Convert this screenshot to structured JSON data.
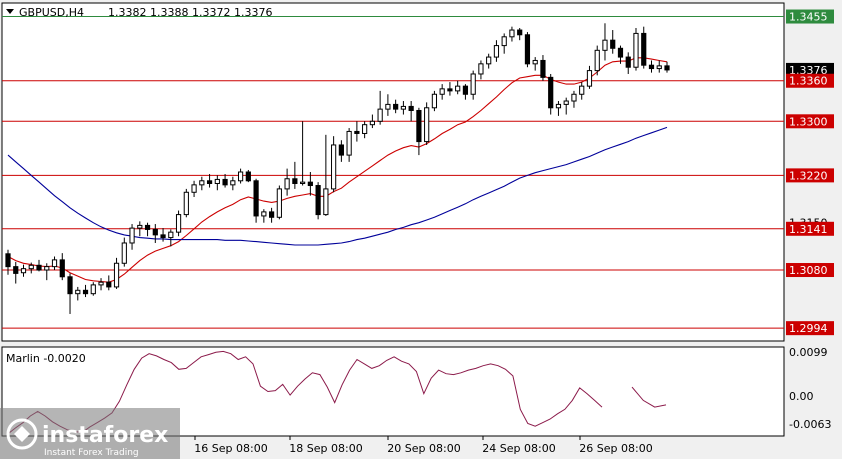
{
  "header": {
    "symbol": "GBPUSD,H4",
    "ohlc": "1.3382 1.3388 1.3372 1.3376"
  },
  "chart_data": [
    {
      "type": "candlestick",
      "symbol": "GBPUSD",
      "timeframe": "H4",
      "x_labels": [
        "16 Sep 08:00",
        "18 Sep 08:00",
        "20 Sep 08:00",
        "24 Sep 08:00",
        "26 Sep 08:00"
      ],
      "ylim": [
        1.2975,
        1.3475
      ],
      "price_labels": [
        "1.3455",
        "1.3376",
        "1.3360",
        "1.3300",
        "1.3220",
        "1.3150",
        "1.3141",
        "1.3080",
        "1.2994"
      ],
      "current_price": 1.3376,
      "horizontal_levels": [
        {
          "value": 1.3455,
          "color": "#2e8b3e"
        },
        {
          "value": 1.336,
          "color": "#cc0000"
        },
        {
          "value": 1.33,
          "color": "#cc0000"
        },
        {
          "value": 1.322,
          "color": "#cc0000"
        },
        {
          "value": 1.3141,
          "color": "#cc0000"
        },
        {
          "value": 1.308,
          "color": "#cc0000"
        },
        {
          "value": 1.2994,
          "color": "#cc0000"
        }
      ],
      "candles": [
        [
          1.3104,
          1.311,
          1.3073,
          1.3085
        ],
        [
          1.3085,
          1.3092,
          1.306,
          1.3075
        ],
        [
          1.3076,
          1.3088,
          1.307,
          1.3082
        ],
        [
          1.3082,
          1.3091,
          1.3075,
          1.3087
        ],
        [
          1.3087,
          1.3095,
          1.3078,
          1.308
        ],
        [
          1.308,
          1.309,
          1.3065,
          1.3085
        ],
        [
          1.3085,
          1.31,
          1.308,
          1.3095
        ],
        [
          1.3095,
          1.3105,
          1.3065,
          1.307
        ],
        [
          1.307,
          1.3075,
          1.3015,
          1.3045
        ],
        [
          1.3045,
          1.3055,
          1.3035,
          1.305
        ],
        [
          1.305,
          1.3058,
          1.304,
          1.3045
        ],
        [
          1.3045,
          1.3062,
          1.3042,
          1.3058
        ],
        [
          1.3058,
          1.3068,
          1.305,
          1.3062
        ],
        [
          1.3062,
          1.3072,
          1.305,
          1.3055
        ],
        [
          1.3055,
          1.3098,
          1.3052,
          1.309
        ],
        [
          1.309,
          1.3128,
          1.3085,
          1.312
        ],
        [
          1.312,
          1.3148,
          1.311,
          1.3142
        ],
        [
          1.3142,
          1.3152,
          1.313,
          1.3146
        ],
        [
          1.3146,
          1.315,
          1.313,
          1.314
        ],
        [
          1.314,
          1.3148,
          1.312,
          1.3132
        ],
        [
          1.3132,
          1.3142,
          1.3122,
          1.3128
        ],
        [
          1.3128,
          1.314,
          1.3115,
          1.3136
        ],
        [
          1.3136,
          1.3168,
          1.313,
          1.3162
        ],
        [
          1.3162,
          1.32,
          1.3158,
          1.3195
        ],
        [
          1.3195,
          1.3212,
          1.3188,
          1.3206
        ],
        [
          1.3206,
          1.3218,
          1.3198,
          1.3212
        ],
        [
          1.3212,
          1.3222,
          1.3202,
          1.3208
        ],
        [
          1.3208,
          1.322,
          1.3198,
          1.3214
        ],
        [
          1.3214,
          1.3222,
          1.3202,
          1.3206
        ],
        [
          1.3206,
          1.3218,
          1.3198,
          1.3212
        ],
        [
          1.3212,
          1.323,
          1.3208,
          1.3225
        ],
        [
          1.3225,
          1.3228,
          1.321,
          1.3212
        ],
        [
          1.3212,
          1.3215,
          1.315,
          1.316
        ],
        [
          1.316,
          1.317,
          1.315,
          1.3166
        ],
        [
          1.3166,
          1.3172,
          1.315,
          1.3158
        ],
        [
          1.3158,
          1.3205,
          1.3155,
          1.32
        ],
        [
          1.32,
          1.323,
          1.319,
          1.3215
        ],
        [
          1.3215,
          1.324,
          1.32,
          1.3208
        ],
        [
          1.3208,
          1.33,
          1.3205,
          1.321
        ],
        [
          1.321,
          1.3225,
          1.319,
          1.3205
        ],
        [
          1.3205,
          1.321,
          1.3155,
          1.3162
        ],
        [
          1.3162,
          1.328,
          1.316,
          1.32
        ],
        [
          1.32,
          1.3278,
          1.3195,
          1.3265
        ],
        [
          1.3265,
          1.3272,
          1.324,
          1.325
        ],
        [
          1.325,
          1.329,
          1.324,
          1.3285
        ],
        [
          1.3285,
          1.33,
          1.327,
          1.3282
        ],
        [
          1.3282,
          1.33,
          1.3275,
          1.3295
        ],
        [
          1.3295,
          1.331,
          1.329,
          1.33
        ],
        [
          1.33,
          1.3345,
          1.3295,
          1.3318
        ],
        [
          1.3318,
          1.334,
          1.3308,
          1.3325
        ],
        [
          1.3325,
          1.3332,
          1.3312,
          1.3318
        ],
        [
          1.3318,
          1.333,
          1.331,
          1.3322
        ],
        [
          1.3322,
          1.333,
          1.33,
          1.3316
        ],
        [
          1.3316,
          1.332,
          1.325,
          1.327
        ],
        [
          1.327,
          1.3328,
          1.3265,
          1.332
        ],
        [
          1.332,
          1.3345,
          1.3315,
          1.334
        ],
        [
          1.334,
          1.3355,
          1.3332,
          1.3348
        ],
        [
          1.3348,
          1.3358,
          1.3338,
          1.3345
        ],
        [
          1.3345,
          1.336,
          1.334,
          1.3352
        ],
        [
          1.3352,
          1.3355,
          1.3332,
          1.334
        ],
        [
          1.334,
          1.3375,
          1.3332,
          1.337
        ],
        [
          1.337,
          1.339,
          1.3362,
          1.3385
        ],
        [
          1.3385,
          1.34,
          1.3378,
          1.3395
        ],
        [
          1.3395,
          1.342,
          1.3388,
          1.3412
        ],
        [
          1.3412,
          1.343,
          1.34,
          1.3425
        ],
        [
          1.3425,
          1.344,
          1.3418,
          1.3435
        ],
        [
          1.3435,
          1.3438,
          1.342,
          1.3428
        ],
        [
          1.3428,
          1.3432,
          1.338,
          1.3385
        ],
        [
          1.3385,
          1.3395,
          1.3375,
          1.339
        ],
        [
          1.339,
          1.3398,
          1.336,
          1.3365
        ],
        [
          1.3365,
          1.337,
          1.331,
          1.332
        ],
        [
          1.332,
          1.333,
          1.3308,
          1.3325
        ],
        [
          1.3325,
          1.3335,
          1.331,
          1.333
        ],
        [
          1.333,
          1.3345,
          1.332,
          1.334
        ],
        [
          1.334,
          1.3358,
          1.3332,
          1.3352
        ],
        [
          1.3352,
          1.3382,
          1.3348,
          1.3375
        ],
        [
          1.3375,
          1.3412,
          1.3368,
          1.3405
        ],
        [
          1.3405,
          1.3445,
          1.339,
          1.342
        ],
        [
          1.342,
          1.3435,
          1.34,
          1.3408
        ],
        [
          1.3408,
          1.3412,
          1.3385,
          1.3395
        ],
        [
          1.3395,
          1.3402,
          1.337,
          1.338
        ],
        [
          1.338,
          1.3438,
          1.3375,
          1.343
        ],
        [
          1.343,
          1.344,
          1.3378,
          1.3383
        ],
        [
          1.3383,
          1.339,
          1.3372,
          1.3378
        ],
        [
          1.3378,
          1.339,
          1.3372,
          1.3382
        ],
        [
          1.3382,
          1.3388,
          1.3372,
          1.3376
        ]
      ],
      "moving_averages": [
        {
          "name": "fast",
          "color": "#cc0000",
          "values": [
            1.31,
            1.3094,
            1.309,
            1.3088,
            1.3086,
            1.3085,
            1.3086,
            1.3083,
            1.3076,
            1.3071,
            1.3066,
            1.3064,
            1.3063,
            1.3062,
            1.3066,
            1.3074,
            1.3084,
            1.3094,
            1.3102,
            1.3108,
            1.3112,
            1.3116,
            1.3122,
            1.3131,
            1.3141,
            1.3151,
            1.3159,
            1.3166,
            1.3172,
            1.3177,
            1.3184,
            1.3188,
            1.3185,
            1.3182,
            1.318,
            1.3182,
            1.3186,
            1.3189,
            1.3191,
            1.3193,
            1.3189,
            1.3189,
            1.3196,
            1.3201,
            1.321,
            1.3218,
            1.3226,
            1.3234,
            1.3242,
            1.325,
            1.3256,
            1.3261,
            1.3264,
            1.3262,
            1.3267,
            1.3274,
            1.3282,
            1.3288,
            1.3295,
            1.3299,
            1.3307,
            1.3316,
            1.3326,
            1.3336,
            1.3347,
            1.3357,
            1.3364,
            1.3366,
            1.3368,
            1.3368,
            1.3362,
            1.3358,
            1.3355,
            1.3355,
            1.3358,
            1.3364,
            1.3373,
            1.3383,
            1.3388,
            1.3389,
            1.3389,
            1.3394,
            1.3394,
            1.3392,
            1.339,
            1.3388
          ]
        },
        {
          "name": "slow",
          "color": "#00009a",
          "values": [
            1.325,
            1.324,
            1.323,
            1.322,
            1.321,
            1.32,
            1.319,
            1.3181,
            1.3172,
            1.3164,
            1.3157,
            1.315,
            1.3144,
            1.3139,
            1.3135,
            1.3132,
            1.313,
            1.3128,
            1.3127,
            1.3126,
            1.3126,
            1.3125,
            1.3125,
            1.3125,
            1.3125,
            1.3125,
            1.3125,
            1.3125,
            1.3124,
            1.3124,
            1.3124,
            1.3123,
            1.3122,
            1.3121,
            1.312,
            1.3119,
            1.3118,
            1.3117,
            1.3117,
            1.3117,
            1.3117,
            1.3118,
            1.3119,
            1.312,
            1.3122,
            1.3125,
            1.3127,
            1.313,
            1.3133,
            1.3136,
            1.314,
            1.3143,
            1.3147,
            1.315,
            1.3154,
            1.3158,
            1.3163,
            1.3168,
            1.3173,
            1.3178,
            1.3184,
            1.3189,
            1.3194,
            1.3199,
            1.3204,
            1.321,
            1.3216,
            1.322,
            1.3224,
            1.3227,
            1.323,
            1.3233,
            1.3236,
            1.324,
            1.3244,
            1.3248,
            1.3253,
            1.3258,
            1.3262,
            1.3266,
            1.327,
            1.3275,
            1.3279,
            1.3283,
            1.3287,
            1.3291
          ]
        }
      ]
    },
    {
      "type": "line",
      "title": "Marlin -0.0020",
      "series_name": "Marlin",
      "current_value": -0.002,
      "ylim": [
        -0.009,
        0.011
      ],
      "tick_labels": [
        "0.0099",
        "0.00",
        "-0.0063"
      ],
      "color": "#8b1a4a",
      "segments": [
        [
          -0.0085,
          -0.0072,
          -0.006,
          -0.0045,
          -0.0035,
          -0.0045,
          -0.0058,
          -0.0068,
          -0.0076,
          -0.008,
          -0.0082,
          -0.007,
          -0.006,
          -0.005,
          -0.0038,
          -0.0012,
          0.0025,
          0.006,
          0.0085,
          0.0095,
          0.009,
          0.0082,
          0.0075,
          0.006,
          0.0062,
          0.0075,
          0.0088,
          0.0093,
          0.0098,
          0.01,
          0.0095,
          0.0082,
          0.0088,
          0.0072,
          0.0022,
          0.001,
          0.0012,
          0.0026,
          0.0002,
          0.0022,
          0.0038,
          0.0052,
          0.0048,
          0.002,
          -0.0015,
          0.0025,
          0.0058,
          0.0082,
          0.0072,
          0.0062,
          0.0068,
          0.008,
          0.0088,
          0.0078,
          0.0072,
          0.0055,
          0.0005,
          0.004,
          0.0058,
          0.005,
          0.0048,
          0.0052,
          0.0058,
          0.0062,
          0.0068,
          0.0072,
          0.0068,
          0.006,
          0.0045,
          -0.003,
          -0.0062,
          -0.0068,
          -0.006,
          -0.0052,
          -0.004,
          -0.003,
          -0.001,
          0.0018,
          0.0005,
          -0.001,
          -0.0025
        ]
      ],
      "tail": [
        0.002,
        -0.001,
        -0.0025,
        -0.002
      ]
    }
  ],
  "logo": {
    "name": "instaforex",
    "tagline": "Instant Forex Trading"
  }
}
